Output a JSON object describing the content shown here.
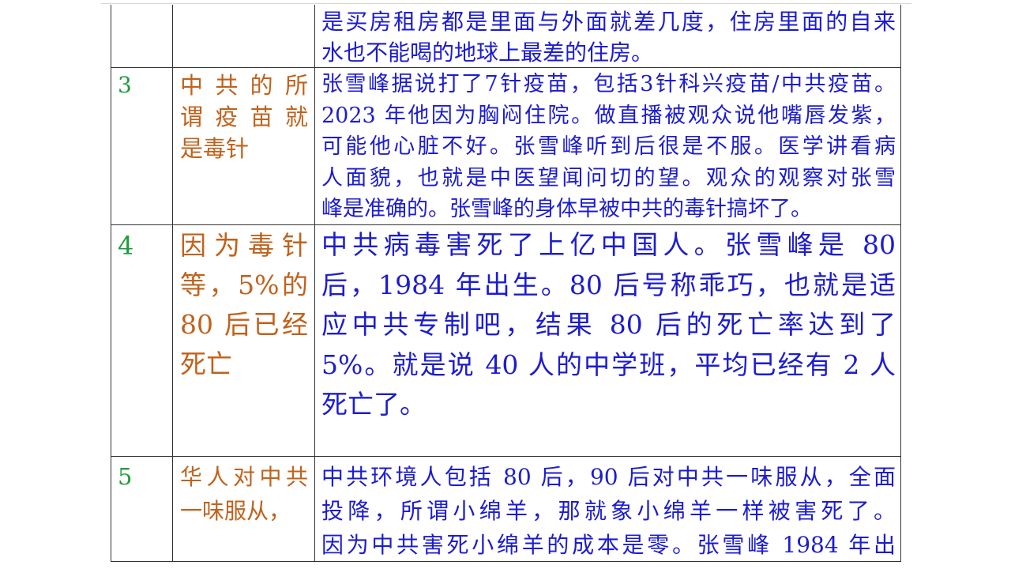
{
  "colors": {
    "number": "#1e9c3c",
    "title": "#c0621c",
    "content": "#1c1cd0"
  },
  "rows": [
    {
      "number": "",
      "title": [],
      "content": [
        "是买房租房都是里面与外面就差几度，住房里面的自来",
        "水也不能喝的地球上最差的住房。"
      ]
    },
    {
      "number": "3",
      "title": [
        "中共的所",
        "谓疫苗就",
        "是毒针"
      ],
      "content": [
        "张雪峰据说打了7针疫苗，包括3针科兴疫苗/中共疫苗。",
        "2023 年他因为胸闷住院。做直播被观众说他嘴唇发紫，",
        "可能他心脏不好。张雪峰听到后很是不服。医学讲看病",
        "人面貌，也就是中医望闻问切的望。观众的观察对张雪",
        "峰是准确的。张雪峰的身体早被中共的毒针搞坏了。"
      ]
    },
    {
      "number": "4",
      "title": [
        "因为毒针",
        "等，5%的",
        "80 后已经",
        "死亡"
      ],
      "content": [
        "中共病毒害死了上亿中国人。张雪峰是 80",
        "后，1984 年出生。80 后号称乖巧，也就是适",
        "应中共专制吧，结果 80 后的死亡率达到了",
        "5%。就是说 40 人的中学班，平均已经有 2 人",
        "死亡了。"
      ]
    },
    {
      "number": "5",
      "title": [
        "华人对中共",
        "一味服从，"
      ],
      "content": [
        "中共环境人包括 80 后，90 后对中共一味服从，全面",
        "投降，所谓小绵羊，那就象小绵羊一样被害死了。",
        "因为中共害死小绵羊的成本是零。张雪峰 1984 年出"
      ]
    }
  ]
}
